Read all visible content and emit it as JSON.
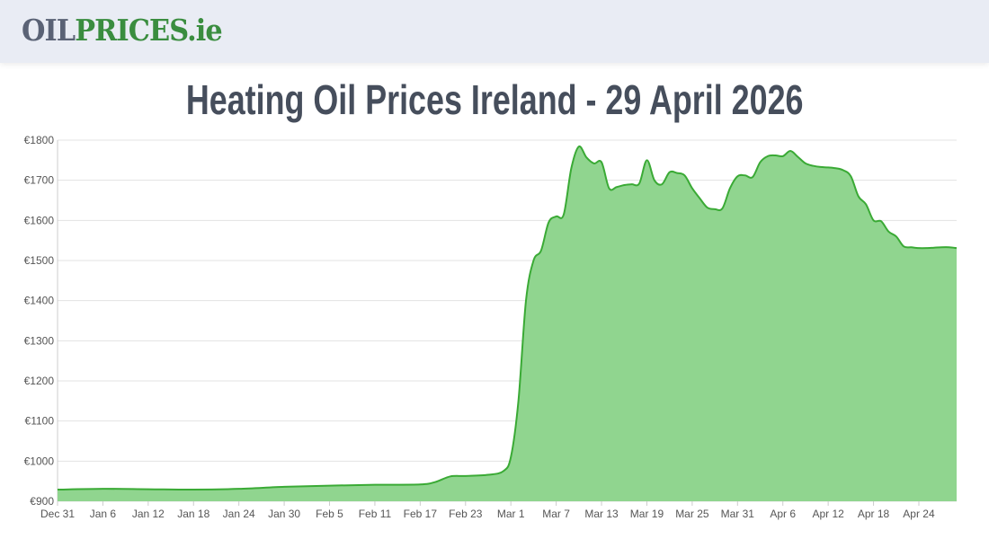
{
  "header": {
    "logo_part1": "OIL",
    "logo_part2": "PRICES.ie"
  },
  "title": "Heating Oil Prices Ireland - 29 April 2026",
  "colors": {
    "line": "#3aaa35",
    "fill": "#90d58f",
    "grid": "#e3e3e3",
    "title": "#464e5c"
  },
  "chart_data": {
    "type": "area",
    "title": "Heating Oil Prices Ireland - 29 April 2026",
    "xlabel": "",
    "ylabel": "",
    "ylim": [
      900,
      1800
    ],
    "y_ticks": [
      "€900",
      "€1000",
      "€1100",
      "€1200",
      "€1300",
      "€1400",
      "€1500",
      "€1600",
      "€1700",
      "€1800"
    ],
    "x_ticks": [
      "Dec 31",
      "Jan 6",
      "Jan 12",
      "Jan 18",
      "Jan 24",
      "Jan 30",
      "Feb 5",
      "Feb 11",
      "Feb 17",
      "Feb 23",
      "Mar 1",
      "Mar 7",
      "Mar 13",
      "Mar 19",
      "Mar 25",
      "Mar 31",
      "Apr 6",
      "Apr 12",
      "Apr 18",
      "Apr 24"
    ],
    "grid": true,
    "series": [
      {
        "points": [
          [
            "Dec 31",
            929
          ],
          [
            "Jan 6",
            931
          ],
          [
            "Jan 12",
            930
          ],
          [
            "Jan 18",
            929
          ],
          [
            "Jan 24",
            931
          ],
          [
            "Jan 30",
            936
          ],
          [
            "Feb 5",
            939
          ],
          [
            "Feb 11",
            941
          ],
          [
            "Feb 17",
            942
          ],
          [
            "Feb 19",
            948
          ],
          [
            "Feb 21",
            962
          ],
          [
            "Feb 23",
            963
          ],
          [
            "Feb 26",
            966
          ],
          [
            "Feb 28",
            975
          ],
          [
            "Mar 1",
            1010
          ],
          [
            "Mar 2",
            1150
          ],
          [
            "Mar 3",
            1400
          ],
          [
            "Mar 4",
            1500
          ],
          [
            "Mar 5",
            1525
          ],
          [
            "Mar 6",
            1595
          ],
          [
            "Mar 7",
            1610
          ],
          [
            "Mar 8",
            1615
          ],
          [
            "Mar 9",
            1730
          ],
          [
            "Mar 10",
            1784
          ],
          [
            "Mar 11",
            1757
          ],
          [
            "Mar 12",
            1742
          ],
          [
            "Mar 13",
            1745
          ],
          [
            "Mar 14",
            1680
          ],
          [
            "Mar 15",
            1683
          ],
          [
            "Mar 16",
            1688
          ],
          [
            "Mar 17",
            1690
          ],
          [
            "Mar 18",
            1692
          ],
          [
            "Mar 19",
            1750
          ],
          [
            "Mar 20",
            1700
          ],
          [
            "Mar 21",
            1690
          ],
          [
            "Mar 22",
            1720
          ],
          [
            "Mar 23",
            1718
          ],
          [
            "Mar 24",
            1712
          ],
          [
            "Mar 25",
            1680
          ],
          [
            "Mar 26",
            1655
          ],
          [
            "Mar 27",
            1632
          ],
          [
            "Mar 28",
            1628
          ],
          [
            "Mar 29",
            1630
          ],
          [
            "Mar 30",
            1680
          ],
          [
            "Mar 31",
            1710
          ],
          [
            "Apr 1",
            1712
          ],
          [
            "Apr 2",
            1708
          ],
          [
            "Apr 3",
            1745
          ],
          [
            "Apr 4",
            1760
          ],
          [
            "Apr 5",
            1762
          ],
          [
            "Apr 6",
            1760
          ],
          [
            "Apr 7",
            1773
          ],
          [
            "Apr 8",
            1758
          ],
          [
            "Apr 9",
            1742
          ],
          [
            "Apr 10",
            1736
          ],
          [
            "Apr 11",
            1733
          ],
          [
            "Apr 12",
            1732
          ],
          [
            "Apr 13",
            1730
          ],
          [
            "Apr 14",
            1725
          ],
          [
            "Apr 15",
            1710
          ],
          [
            "Apr 16",
            1660
          ],
          [
            "Apr 17",
            1640
          ],
          [
            "Apr 18",
            1600
          ],
          [
            "Apr 19",
            1598
          ],
          [
            "Apr 20",
            1572
          ],
          [
            "Apr 21",
            1560
          ],
          [
            "Apr 22",
            1535
          ],
          [
            "Apr 23",
            1533
          ],
          [
            "Apr 24",
            1531
          ],
          [
            "Apr 25",
            1531
          ],
          [
            "Apr 26",
            1532
          ],
          [
            "Apr 27",
            1533
          ],
          [
            "Apr 28",
            1533
          ],
          [
            "Apr 29",
            1531
          ]
        ]
      }
    ]
  }
}
